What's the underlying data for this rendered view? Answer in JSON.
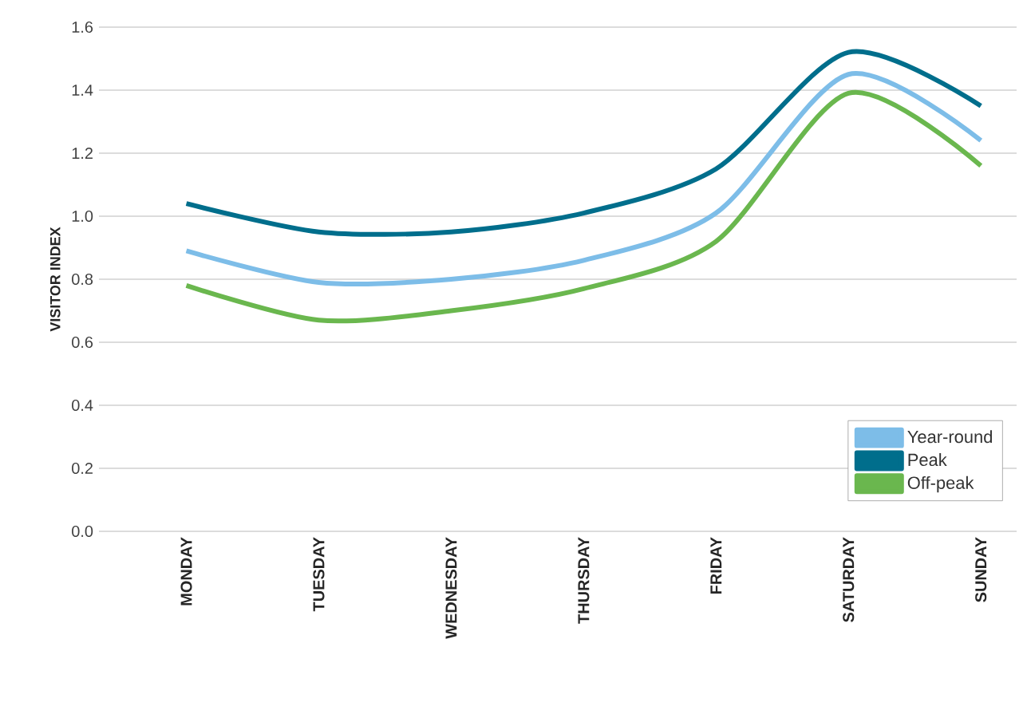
{
  "chart_data": {
    "type": "line",
    "ylabel": "VISITOR INDEX",
    "categories": [
      "MONDAY",
      "TUESDAY",
      "WEDNESDAY",
      "THURSDAY",
      "FRIDAY",
      "SATURDAY",
      "SUNDAY"
    ],
    "series": [
      {
        "name": "Year-round",
        "color": "#7dbde8",
        "values": [
          0.89,
          0.79,
          0.8,
          0.86,
          1.01,
          1.45,
          1.24
        ]
      },
      {
        "name": "Peak",
        "color": "#006e8c",
        "values": [
          1.04,
          0.95,
          0.95,
          1.01,
          1.15,
          1.52,
          1.35
        ]
      },
      {
        "name": "Off-peak",
        "color": "#6ab74e",
        "values": [
          0.78,
          0.67,
          0.7,
          0.77,
          0.92,
          1.39,
          1.16
        ]
      }
    ],
    "ylim": [
      0,
      1.6
    ],
    "yticks": [
      {
        "value": 0,
        "label": "0.0"
      },
      {
        "value": 0.2,
        "label": "0.2"
      },
      {
        "value": 0.4,
        "label": "0.4"
      },
      {
        "value": 0.6,
        "label": "0.6"
      },
      {
        "value": 0.8,
        "label": "0.8"
      },
      {
        "value": 1.0,
        "label": "1.0"
      },
      {
        "value": 1.2,
        "label": "1.2"
      },
      {
        "value": 1.4,
        "label": "1.4"
      },
      {
        "value": 1.6,
        "label": "1.6"
      }
    ],
    "grid": "y",
    "legend": "bottom right",
    "marker": "none",
    "line_style": "solid"
  }
}
